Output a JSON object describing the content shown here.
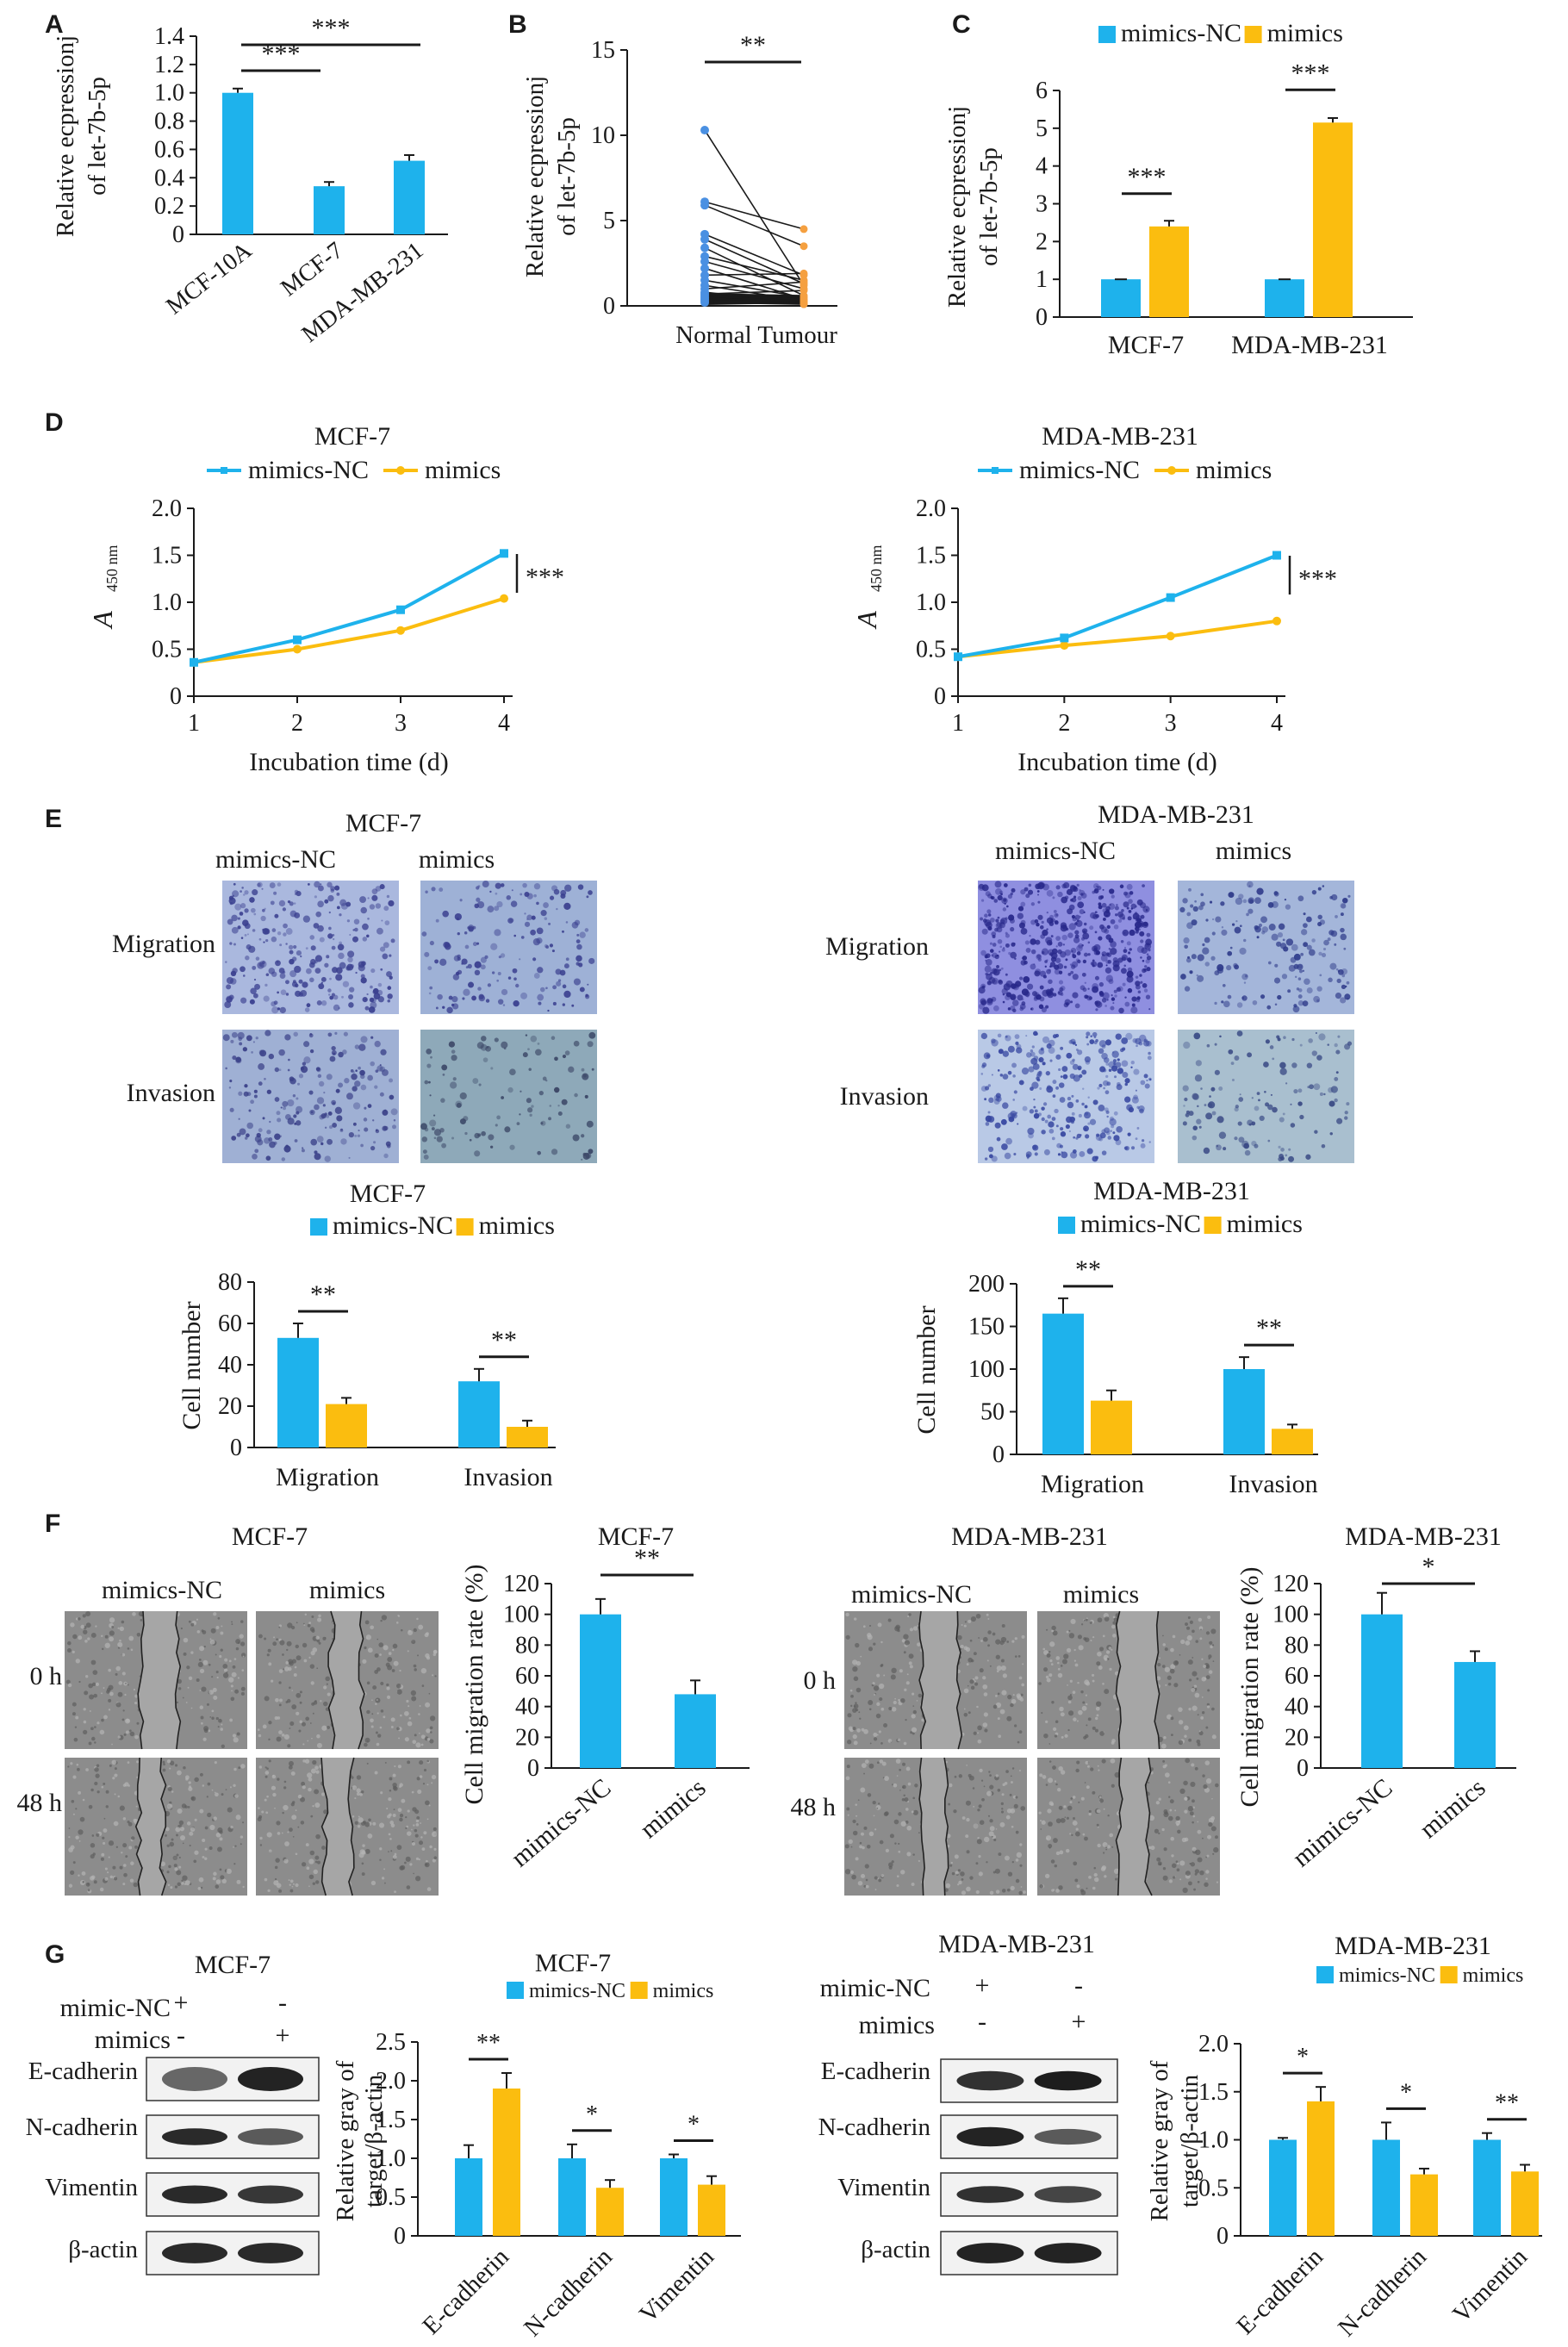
{
  "colors": {
    "blue": "#1eb2ec",
    "yellow": "#fbbd0f",
    "dark": "#1a1a1a",
    "blue_dot": "#4a90e2",
    "orange_dot": "#f5a040"
  },
  "panel_labels": [
    "A",
    "B",
    "C",
    "D",
    "E",
    "F",
    "G"
  ],
  "panel_a": {
    "ylabel_line1": "Relative ecpressionj",
    "ylabel_line2": "of let-7b-5p",
    "yticks": [
      "0",
      "0.2",
      "0.4",
      "0.6",
      "0.8",
      "1.0",
      "1.2",
      "1.4"
    ],
    "categories": [
      "MCF-10A",
      "MCF-7",
      "MDA-MB-231"
    ],
    "values": [
      1.0,
      0.34,
      0.52
    ],
    "errors": [
      0.03,
      0.03,
      0.04
    ],
    "sig": [
      "***",
      "***"
    ]
  },
  "panel_b": {
    "ylabel_line1": "Relative ecpressionj",
    "ylabel_line2": "of let-7b-5p",
    "yticks": [
      "0",
      "5",
      "10",
      "15"
    ],
    "xlabel": "Normal Tumour",
    "sig": "**",
    "pairs": [
      [
        10.3,
        1.2
      ],
      [
        6.1,
        4.5
      ],
      [
        5.9,
        3.5
      ],
      [
        4.2,
        1.8
      ],
      [
        3.9,
        1.3
      ],
      [
        3.4,
        0.6
      ],
      [
        2.9,
        1.5
      ],
      [
        2.6,
        1.0
      ],
      [
        2.2,
        0.4
      ],
      [
        1.8,
        1.9
      ],
      [
        1.5,
        0.5
      ],
      [
        1.2,
        0.3
      ],
      [
        1.0,
        1.4
      ],
      [
        0.8,
        0.2
      ],
      [
        0.7,
        0.9
      ],
      [
        0.6,
        0.2
      ],
      [
        0.5,
        0.1
      ],
      [
        0.4,
        0.3
      ],
      [
        0.3,
        0.2
      ],
      [
        0.2,
        0.1
      ]
    ]
  },
  "panel_c": {
    "legend": [
      "mimics-NC",
      "mimics"
    ],
    "ylabel_line1": "Relative ecpressionj",
    "ylabel_line2": "of let-7b-5p",
    "yticks": [
      "0",
      "1",
      "2",
      "3",
      "4",
      "5",
      "6"
    ],
    "categories": [
      "MCF-7",
      "MDA-MB-231"
    ],
    "nc": [
      1.0,
      1.0
    ],
    "mimics": [
      2.4,
      5.15
    ],
    "mimics_err": [
      0.15,
      0.12
    ],
    "sig": [
      "***",
      "***"
    ]
  },
  "panel_d": {
    "legend": [
      "mimics-NC",
      "mimics"
    ],
    "ylabel": "A",
    "ylabel_sub": "450 nm",
    "xlabel": "Incubation time (d)",
    "xticks": [
      "1",
      "2",
      "3",
      "4"
    ],
    "yticks": [
      "0",
      "0.5",
      "1.0",
      "1.5",
      "2.0"
    ],
    "charts": [
      {
        "title": "MCF-7",
        "nc": [
          0.36,
          0.6,
          0.92,
          1.52
        ],
        "mimics": [
          0.36,
          0.5,
          0.7,
          1.04
        ],
        "sig": "***"
      },
      {
        "title": "MDA-MB-231",
        "nc": [
          0.42,
          0.62,
          1.05,
          1.5
        ],
        "mimics": [
          0.42,
          0.54,
          0.64,
          0.8
        ],
        "sig": "***"
      }
    ]
  },
  "panel_e": {
    "images": [
      {
        "title": "MCF-7",
        "cols": [
          "mimics-NC",
          "mimics"
        ],
        "rows": [
          "Migration",
          "Invasion"
        ]
      },
      {
        "title": "MDA-MB-231",
        "cols": [
          "mimics-NC",
          "mimics"
        ],
        "rows": [
          "Migration",
          "Invasion"
        ]
      }
    ],
    "charts": [
      {
        "title": "MCF-7",
        "legend": [
          "mimics-NC",
          "mimics"
        ],
        "ylabel": "Cell number",
        "yticks": [
          "0",
          "20",
          "40",
          "60",
          "80"
        ],
        "categories": [
          "Migration",
          "Invasion"
        ],
        "nc": [
          53,
          32
        ],
        "nc_err": [
          7,
          6
        ],
        "mimics": [
          21,
          10
        ],
        "mimics_err": [
          3,
          3
        ],
        "sig": [
          "**",
          "**"
        ]
      },
      {
        "title": "MDA-MB-231",
        "legend": [
          "mimics-NC",
          "mimics"
        ],
        "ylabel": "Cell number",
        "yticks": [
          "0",
          "50",
          "100",
          "150",
          "200"
        ],
        "categories": [
          "Migration",
          "Invasion"
        ],
        "nc": [
          165,
          100
        ],
        "nc_err": [
          18,
          14
        ],
        "mimics": [
          63,
          30
        ],
        "mimics_err": [
          12,
          5
        ],
        "sig": [
          "**",
          "**"
        ]
      }
    ]
  },
  "panel_f": {
    "images": [
      {
        "title": "MCF-7",
        "cols": [
          "mimics-NC",
          "mimics"
        ],
        "rows": [
          "0 h",
          "48 h"
        ]
      },
      {
        "title": "MDA-MB-231",
        "cols": [
          "mimics-NC",
          "mimics"
        ],
        "rows": [
          "0 h",
          "48 h"
        ]
      }
    ],
    "charts": [
      {
        "title": "MCF-7",
        "ylabel": "Cell migration rate (%)",
        "yticks": [
          "0",
          "20",
          "40",
          "60",
          "80",
          "100",
          "120"
        ],
        "categories": [
          "mimics-NC",
          "mimics"
        ],
        "values": [
          100,
          48
        ],
        "errors": [
          10,
          9
        ],
        "sig": "**"
      },
      {
        "title": "MDA-MB-231",
        "ylabel": "Cell migration rate (%)",
        "yticks": [
          "0",
          "20",
          "40",
          "60",
          "80",
          "100",
          "120"
        ],
        "categories": [
          "mimics-NC",
          "mimics"
        ],
        "values": [
          100,
          69
        ],
        "errors": [
          14,
          7
        ],
        "sig": "*"
      }
    ]
  },
  "panel_g": {
    "blots": [
      {
        "title": "MCF-7",
        "cond_labels": [
          "mimic-NC",
          "mimics"
        ],
        "signs": [
          [
            "+",
            "-"
          ],
          [
            "-",
            "+"
          ]
        ],
        "bands": [
          "E-cadherin",
          "N-cadherin",
          "Vimentin",
          "β-actin"
        ]
      },
      {
        "title": "MDA-MB-231",
        "cond_labels": [
          "mimic-NC",
          "mimics"
        ],
        "signs": [
          [
            "+",
            "-"
          ],
          [
            "-",
            "+"
          ]
        ],
        "bands": [
          "E-cadherin",
          "N-cadherin",
          "Vimentin",
          "β-actin"
        ]
      }
    ],
    "charts": [
      {
        "title": "MCF-7",
        "legend": [
          "mimics-NC",
          "mimics"
        ],
        "ylabel_line1": "Relative gray of",
        "ylabel_line2": "target/β-actin",
        "yticks": [
          "0",
          "0.5",
          "1.0",
          "1.5",
          "2.0",
          "2.5"
        ],
        "categories": [
          "E-cadherin",
          "N-cadherin",
          "Vimentin"
        ],
        "nc": [
          1.0,
          1.0,
          1.0
        ],
        "nc_err": [
          0.17,
          0.18,
          0.05
        ],
        "mimics": [
          1.9,
          0.62,
          0.66
        ],
        "mimics_err": [
          0.2,
          0.1,
          0.11
        ],
        "sig": [
          "**",
          "*",
          "*"
        ]
      },
      {
        "title": "MDA-MB-231",
        "legend": [
          "mimics-NC",
          "mimics"
        ],
        "ylabel_line1": "Relative gray of",
        "ylabel_line2": "target/β-actin",
        "yticks": [
          "0",
          "0.5",
          "1.0",
          "1.5",
          "2.0"
        ],
        "categories": [
          "E-cadherin",
          "N-cadherin",
          "Vimentin"
        ],
        "nc": [
          1.0,
          1.0,
          1.0
        ],
        "nc_err": [
          0.02,
          0.18,
          0.07
        ],
        "mimics": [
          1.4,
          0.64,
          0.67
        ],
        "mimics_err": [
          0.15,
          0.06,
          0.07
        ],
        "sig": [
          "*",
          "*",
          "**"
        ]
      }
    ]
  },
  "chart_data": [
    {
      "panel": "A",
      "type": "bar",
      "ylabel": "Relative ecpressionj of let-7b-5p",
      "categories": [
        "MCF-10A",
        "MCF-7",
        "MDA-MB-231"
      ],
      "values": [
        1.0,
        0.34,
        0.52
      ],
      "ylim": [
        0,
        1.4
      ]
    },
    {
      "panel": "B",
      "type": "scatter",
      "ylabel": "Relative ecpressionj of let-7b-5p",
      "categories": [
        "Normal",
        "Tumour"
      ],
      "ylim": [
        0,
        15
      ]
    },
    {
      "panel": "C",
      "type": "bar",
      "ylabel": "Relative ecpressionj of let-7b-5p",
      "categories": [
        "MCF-7",
        "MDA-MB-231"
      ],
      "series": [
        {
          "name": "mimics-NC",
          "values": [
            1.0,
            1.0
          ]
        },
        {
          "name": "mimics",
          "values": [
            2.4,
            5.15
          ]
        }
      ],
      "ylim": [
        0,
        6
      ]
    },
    {
      "panel": "D",
      "type": "line",
      "title": "MCF-7",
      "xlabel": "Incubation time (d)",
      "x": [
        1,
        2,
        3,
        4
      ],
      "series": [
        {
          "name": "mimics-NC",
          "values": [
            0.36,
            0.6,
            0.92,
            1.52
          ]
        },
        {
          "name": "mimics",
          "values": [
            0.36,
            0.5,
            0.7,
            1.04
          ]
        }
      ],
      "ylim": [
        0,
        2.0
      ]
    },
    {
      "panel": "D",
      "type": "line",
      "title": "MDA-MB-231",
      "xlabel": "Incubation time (d)",
      "x": [
        1,
        2,
        3,
        4
      ],
      "series": [
        {
          "name": "mimics-NC",
          "values": [
            0.42,
            0.62,
            1.05,
            1.5
          ]
        },
        {
          "name": "mimics",
          "values": [
            0.42,
            0.54,
            0.64,
            0.8
          ]
        }
      ],
      "ylim": [
        0,
        2.0
      ]
    },
    {
      "panel": "E",
      "type": "bar",
      "title": "MCF-7",
      "ylabel": "Cell number",
      "categories": [
        "Migration",
        "Invasion"
      ],
      "series": [
        {
          "name": "mimics-NC",
          "values": [
            53,
            32
          ]
        },
        {
          "name": "mimics",
          "values": [
            21,
            10
          ]
        }
      ],
      "ylim": [
        0,
        80
      ]
    },
    {
      "panel": "E",
      "type": "bar",
      "title": "MDA-MB-231",
      "ylabel": "Cell number",
      "categories": [
        "Migration",
        "Invasion"
      ],
      "series": [
        {
          "name": "mimics-NC",
          "values": [
            165,
            100
          ]
        },
        {
          "name": "mimics",
          "values": [
            63,
            30
          ]
        }
      ],
      "ylim": [
        0,
        200
      ]
    },
    {
      "panel": "F",
      "type": "bar",
      "title": "MCF-7",
      "ylabel": "Cell migration rate (%)",
      "categories": [
        "mimics-NC",
        "mimics"
      ],
      "values": [
        100,
        48
      ],
      "ylim": [
        0,
        120
      ]
    },
    {
      "panel": "F",
      "type": "bar",
      "title": "MDA-MB-231",
      "ylabel": "Cell migration rate (%)",
      "categories": [
        "mimics-NC",
        "mimics"
      ],
      "values": [
        100,
        69
      ],
      "ylim": [
        0,
        120
      ]
    },
    {
      "panel": "G",
      "type": "bar",
      "title": "MCF-7",
      "ylabel": "Relative gray of target/β-actin",
      "categories": [
        "E-cadherin",
        "N-cadherin",
        "Vimentin"
      ],
      "series": [
        {
          "name": "mimics-NC",
          "values": [
            1.0,
            1.0,
            1.0
          ]
        },
        {
          "name": "mimics",
          "values": [
            1.9,
            0.62,
            0.66
          ]
        }
      ],
      "ylim": [
        0,
        2.5
      ]
    },
    {
      "panel": "G",
      "type": "bar",
      "title": "MDA-MB-231",
      "ylabel": "Relative gray of target/β-actin",
      "categories": [
        "E-cadherin",
        "N-cadherin",
        "Vimentin"
      ],
      "series": [
        {
          "name": "mimics-NC",
          "values": [
            1.0,
            1.0,
            1.0
          ]
        },
        {
          "name": "mimics",
          "values": [
            1.4,
            0.64,
            0.67
          ]
        }
      ],
      "ylim": [
        0,
        2.0
      ]
    }
  ]
}
